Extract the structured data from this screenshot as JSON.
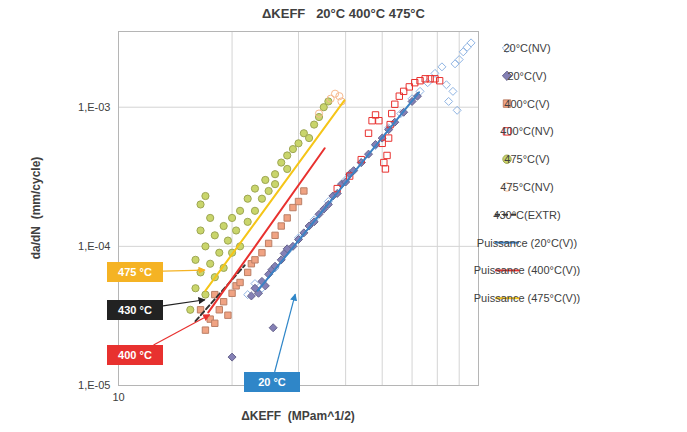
{
  "chart_data": {
    "type": "scatter",
    "title": "ΔKEFF   20°C 400°C 475°C",
    "x_label": "ΔKEFF  (MPam^1/2)",
    "y_label": "da/dN  (mm/cycle)",
    "log": true,
    "grid": true,
    "legend": "right",
    "xlim": [
      10,
      90
    ],
    "xticks": [
      10
    ],
    "xgrid": [
      20,
      30,
      40,
      50,
      60,
      70,
      80
    ],
    "ylim": [
      1e-05,
      0.0035
    ],
    "yticks": [
      {
        "value": 1e-05,
        "label": "1,E-05"
      },
      {
        "value": 0.0001,
        "label": "1,E-04"
      },
      {
        "value": 0.001,
        "label": "1,E-03"
      }
    ],
    "series": [
      {
        "name": "20°C(NV)",
        "type": "scatter",
        "marker": "diamond_open",
        "color": "#8fb4e3",
        "x": [
          22,
          23,
          24,
          26,
          28,
          30,
          33,
          36,
          40,
          44,
          48,
          52,
          56,
          60,
          63,
          66,
          69,
          72,
          74,
          75,
          77,
          78,
          79,
          80,
          82,
          84,
          86
        ],
        "values": [
          4.5e-05,
          5.4e-05,
          5e-05,
          7e-05,
          9.2e-05,
          0.000115,
          0.000155,
          0.00021,
          0.0003,
          0.0004,
          0.00053,
          0.00071,
          0.0009,
          0.00115,
          0.0013,
          0.0015,
          0.00175,
          0.00195,
          0.00145,
          0.0011,
          0.0013,
          0.00205,
          0.00095,
          0.0022,
          0.0025,
          0.0027,
          0.0029
        ]
      },
      {
        "name": "20°C(V)",
        "type": "scatter",
        "marker": "diamond",
        "color": "#8480b5",
        "x": [
          20,
          22.5,
          23,
          23.5,
          24,
          24.5,
          25,
          25.5,
          25.7,
          26,
          27,
          27.5,
          28,
          29,
          30,
          31,
          32,
          33,
          34,
          35,
          36,
          37,
          38,
          39,
          40,
          41,
          42,
          44,
          46,
          48,
          50,
          52,
          54,
          57,
          60,
          62
        ],
        "values": [
          1.6e-05,
          4.4e-05,
          5e-05,
          4.6e-05,
          5.6e-05,
          5.2e-05,
          6.3e-05,
          6.8e-05,
          2.6e-05,
          7.2e-05,
          8e-05,
          8.9e-05,
          9.6e-05,
          0.0001,
          0.000112,
          0.000125,
          0.00014,
          0.00015,
          0.00017,
          0.000185,
          0.0002,
          0.00023,
          0.00024,
          0.00028,
          0.00029,
          0.00033,
          0.00035,
          0.0004,
          0.00046,
          0.00054,
          0.0006,
          0.00069,
          0.00078,
          0.00092,
          0.0011,
          0.0012
        ]
      },
      {
        "name": "400°C(V)",
        "type": "scatter",
        "marker": "square",
        "color": "#f0a383",
        "x": [
          16.5,
          17,
          17.5,
          18,
          18,
          18.5,
          19,
          19.5,
          20,
          20.5,
          21,
          22,
          22.5,
          23,
          24,
          25,
          26,
          27,
          28,
          29,
          30,
          31
        ],
        "values": [
          3.5e-05,
          2.5e-05,
          3e-05,
          2.8e-05,
          4.5e-05,
          3.5e-05,
          4e-05,
          3.2e-05,
          4.6e-05,
          5.2e-05,
          5.5e-05,
          6.5e-05,
          7.5e-05,
          8e-05,
          9e-05,
          0.000105,
          0.00012,
          0.00014,
          0.00016,
          0.00019,
          0.00021,
          0.00025
        ]
      },
      {
        "name": "400°C(NV)",
        "type": "scatter",
        "marker": "square_open",
        "color": "#e8312f",
        "x": [
          38,
          41,
          44,
          46,
          47,
          48,
          49,
          50,
          50.5,
          51,
          51.5,
          52,
          52.5,
          53,
          54,
          55.5,
          57,
          59,
          61,
          63,
          65,
          67,
          69,
          71
        ],
        "values": [
          0.00026,
          0.00032,
          0.00042,
          0.00065,
          0.0008,
          0.00088,
          0.0008,
          0.00055,
          0.0004,
          0.00036,
          0.00045,
          0.0006,
          0.00075,
          0.0009,
          0.00105,
          0.0012,
          0.0013,
          0.0014,
          0.0015,
          0.00155,
          0.0016,
          0.0016,
          0.0016,
          0.00155
        ]
      },
      {
        "name": "475°C(V)",
        "type": "scatter",
        "marker": "circle",
        "color": "#c9d56b",
        "x": [
          15.5,
          16,
          16,
          16.5,
          16.5,
          16.5,
          17,
          17,
          17,
          17.5,
          17.5,
          18,
          18,
          18.5,
          19,
          19,
          19.5,
          20,
          20,
          20.5,
          21,
          21,
          22,
          22,
          23,
          23,
          24,
          24.5,
          25,
          26,
          26,
          27,
          28,
          28,
          29,
          30,
          31,
          32,
          33,
          34,
          35,
          36
        ],
        "values": [
          3.5e-05,
          5e-05,
          8e-05,
          6.5e-05,
          0.00013,
          0.0002,
          0.0001,
          4.5e-05,
          0.00023,
          7.5e-05,
          0.00016,
          0.00012,
          6e-05,
          9e-05,
          0.00014,
          7e-05,
          0.00011,
          0.00016,
          9e-05,
          0.00013,
          0.00018,
          0.0001,
          0.00015,
          0.00022,
          0.00018,
          0.00026,
          0.00022,
          0.0003,
          0.00025,
          0.00033,
          0.00028,
          0.0004,
          0.00045,
          0.00036,
          0.0005,
          0.00055,
          0.00065,
          0.0006,
          0.00075,
          0.00085,
          0.001,
          0.0011
        ]
      },
      {
        "name": "475°C(NV)",
        "type": "scatter",
        "marker": "circle_open",
        "color": "#f7b98e",
        "x": [
          34,
          36.5,
          37.5,
          38.5,
          39
        ],
        "values": [
          0.0009,
          0.00115,
          0.00125,
          0.0012,
          0.0011
        ]
      },
      {
        "name": "430°C(EXTR)",
        "type": "line",
        "line_style": "dashed",
        "color": "#333333",
        "x": [
          16,
          21.6
        ],
        "values": [
          2.9e-05,
          7.3e-05
        ]
      },
      {
        "name": "Puissance (20°C(V))",
        "type": "line",
        "line_style": "solid",
        "color": "#3b82c4",
        "x": [
          23.4,
          62.6
        ],
        "values": [
          4.8e-05,
          0.00128
        ]
      },
      {
        "name": "Puissance (400°C(V))",
        "type": "line",
        "line_style": "solid",
        "color": "#e8312f",
        "x": [
          17.3,
          35.2
        ],
        "values": [
          3.35e-05,
          0.000507
        ]
      },
      {
        "name": "Puissance (475°C(V))",
        "type": "line",
        "line_style": "solid",
        "color": "#f5c518",
        "x": [
          17,
          39.7
        ],
        "values": [
          4.8e-05,
          0.00112
        ]
      }
    ],
    "annotations": [
      {
        "text": "475 °C",
        "color": "#f5b324",
        "x": 17,
        "y": 6.7e-05
      },
      {
        "text": "430 °C",
        "color": "#222222",
        "x": 17,
        "y": 4.1e-05
      },
      {
        "text": "400 °C",
        "color": "#e8312f",
        "x": 17.5,
        "y": 3.2e-05
      },
      {
        "text": "20 °C",
        "color": "#2f86c8",
        "x": 29.5,
        "y": 4.5e-05
      }
    ]
  }
}
